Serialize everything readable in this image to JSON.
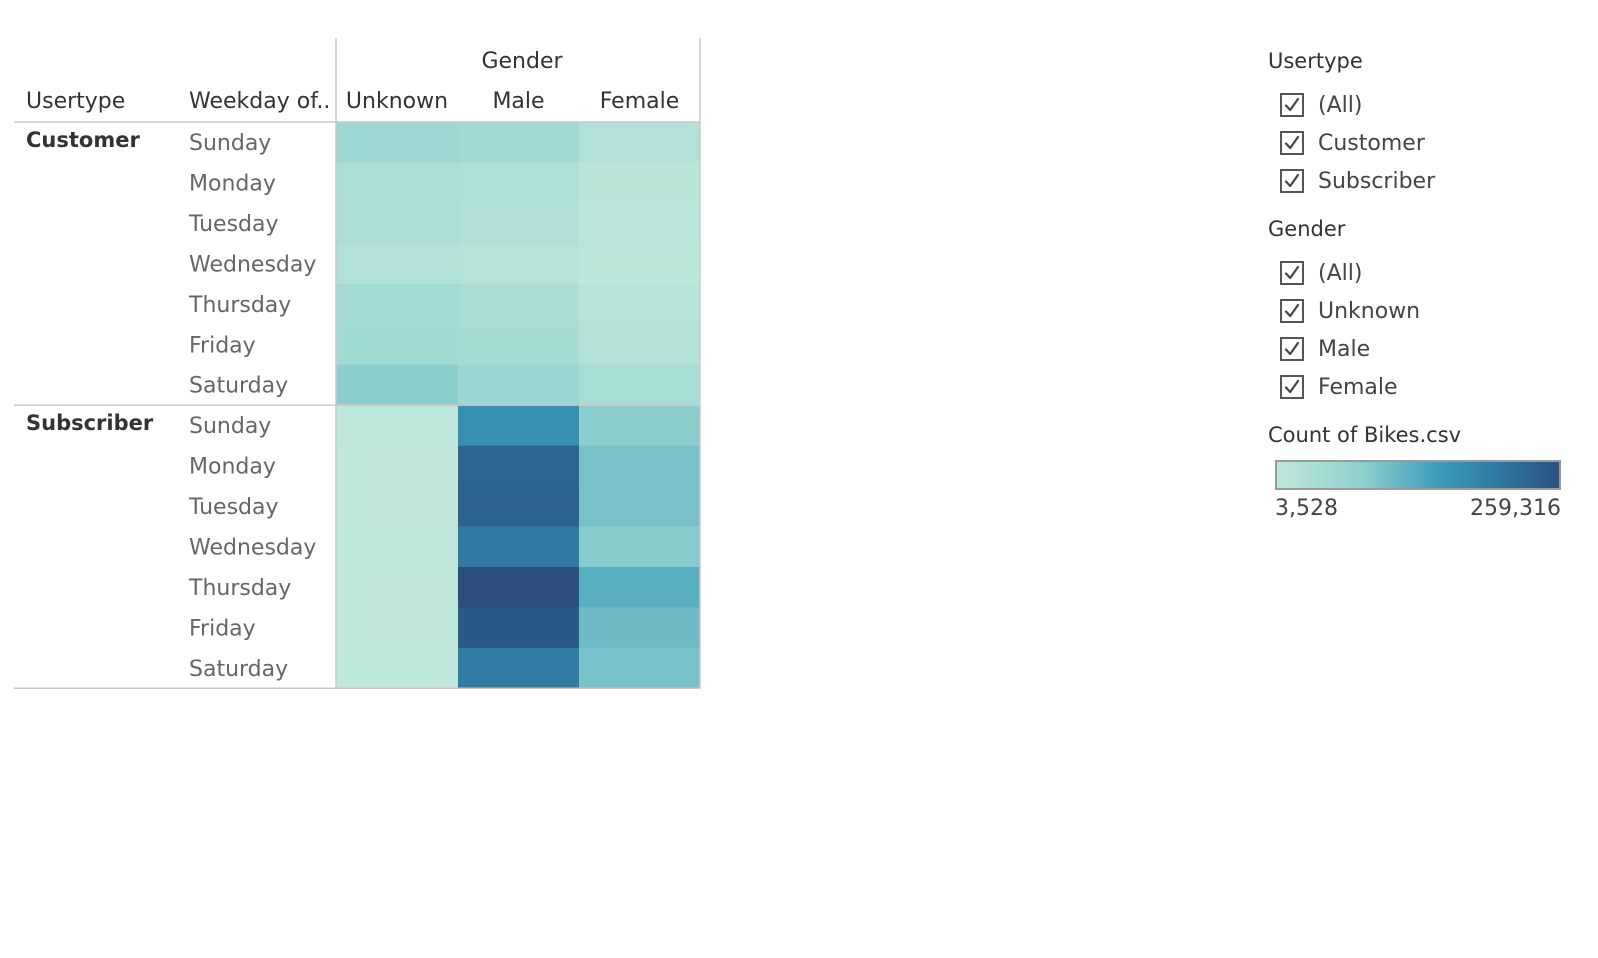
{
  "chart_data": {
    "type": "heatmap",
    "row_headers": [
      "Usertype",
      "Weekday of.."
    ],
    "column_group": "Gender",
    "columns": [
      "Unknown",
      "Male",
      "Female"
    ],
    "groups": [
      {
        "name": "Customer",
        "rows": [
          "Sunday",
          "Monday",
          "Tuesday",
          "Wednesday",
          "Thursday",
          "Friday",
          "Saturday"
        ],
        "values": [
          [
            48000,
            40000,
            22000
          ],
          [
            30000,
            25000,
            12000
          ],
          [
            29000,
            24000,
            11000
          ],
          [
            22000,
            18000,
            9000
          ],
          [
            38000,
            33000,
            18000
          ],
          [
            42000,
            36000,
            20000
          ],
          [
            70000,
            52000,
            34000
          ]
        ]
      },
      {
        "name": "Subscriber",
        "rows": [
          "Sunday",
          "Monday",
          "Tuesday",
          "Wednesday",
          "Thursday",
          "Friday",
          "Saturday"
        ],
        "values": [
          [
            5000,
            150000,
            70000
          ],
          [
            4000,
            225000,
            85000
          ],
          [
            3800,
            230000,
            85000
          ],
          [
            4200,
            190000,
            72000
          ],
          [
            3528,
            259316,
            108000
          ],
          [
            3700,
            245000,
            92000
          ],
          [
            4500,
            185000,
            85000
          ]
        ]
      }
    ],
    "color_scale": {
      "title": "Count of Bikes.csv",
      "min": 3528,
      "max": 259316,
      "min_label": "3,528",
      "max_label": "259,316",
      "stops": [
        "#bfe8db",
        "#8fd0cf",
        "#3a9ab8",
        "#2e76a0",
        "#2c4f80"
      ]
    }
  },
  "filters": [
    {
      "title": "Usertype",
      "items": [
        {
          "label": "(All)",
          "checked": true
        },
        {
          "label": "Customer",
          "checked": true
        },
        {
          "label": "Subscriber",
          "checked": true
        }
      ]
    },
    {
      "title": "Gender",
      "items": [
        {
          "label": "(All)",
          "checked": true
        },
        {
          "label": "Unknown",
          "checked": true
        },
        {
          "label": "Male",
          "checked": true
        },
        {
          "label": "Female",
          "checked": true
        }
      ]
    }
  ]
}
